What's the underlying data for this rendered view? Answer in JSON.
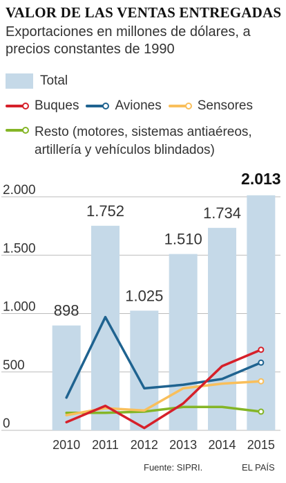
{
  "header": {
    "title": "VALOR DE LAS VENTAS ENTREGADAS",
    "subtitle": "Exportaciones en millones de dólares, a precios constantes de 1990"
  },
  "legend": {
    "total": "Total",
    "buques": "Buques",
    "aviones": "Aviones",
    "sensores": "Sensores",
    "resto": "Resto (motores, sistemas antiaéreos, artillería y vehículos blindados)"
  },
  "colors": {
    "total": "#c5d9e8",
    "buques": "#d6202a",
    "aviones": "#1f6390",
    "sensores": "#f9bf5b",
    "resto": "#84b526",
    "grid": "#bbbbbb"
  },
  "chart_data": {
    "type": "bar",
    "categories": [
      "2010",
      "2011",
      "2012",
      "2013",
      "2014",
      "2015"
    ],
    "ylim": [
      0,
      2000
    ],
    "yticks": [
      0,
      500,
      1000,
      1500,
      2000
    ],
    "ytick_labels": [
      "0",
      "500",
      "1.000",
      "1.500",
      "2.000"
    ],
    "grid": true,
    "series": [
      {
        "name": "Total",
        "type": "bar",
        "values": [
          898,
          1752,
          1025,
          1510,
          1734,
          2013
        ],
        "labels": [
          "898",
          "1.752",
          "1.025",
          "1.510",
          "1.734",
          "2.013"
        ]
      },
      {
        "name": "Buques",
        "type": "line",
        "values": [
          70,
          210,
          20,
          230,
          550,
          690
        ]
      },
      {
        "name": "Aviones",
        "type": "line",
        "values": [
          280,
          970,
          360,
          390,
          440,
          580
        ]
      },
      {
        "name": "Sensores",
        "type": "line",
        "values": [
          130,
          190,
          170,
          360,
          400,
          420
        ]
      },
      {
        "name": "Resto",
        "type": "line",
        "values": [
          150,
          150,
          160,
          200,
          200,
          160
        ]
      }
    ]
  },
  "footer": {
    "source": "Fuente: SIPRI.",
    "brand": "EL PAÍS"
  }
}
